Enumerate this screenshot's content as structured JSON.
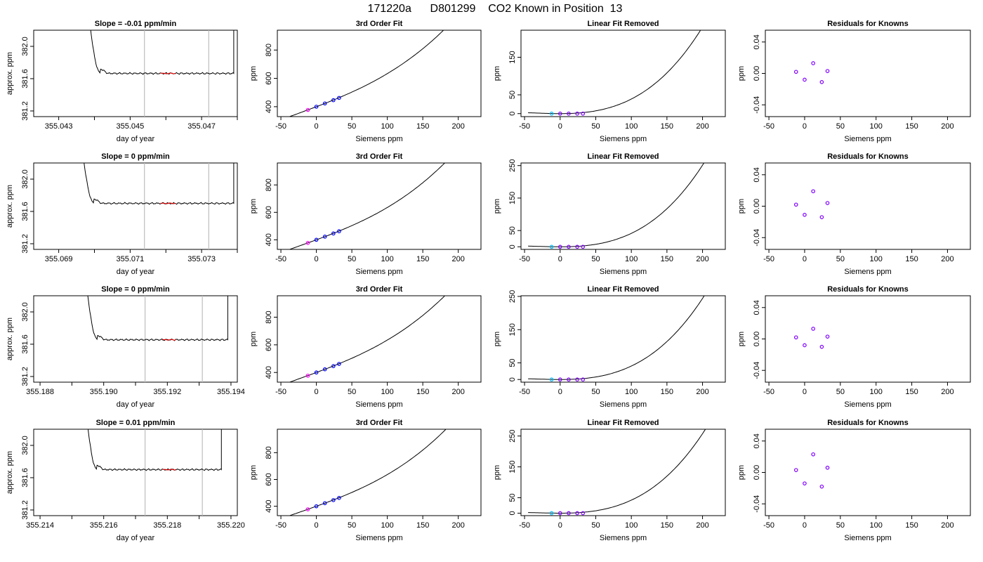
{
  "figure": {
    "title": "171220a      D801299    CO2 Known in Position  13"
  },
  "chart_data": [
    {
      "row": 1,
      "col": 1,
      "type": "line",
      "title": "Slope =  -0.01  ppm/min",
      "xlabel": "day of year",
      "ylabel": "approx. ppm",
      "xlim": [
        355.0423,
        355.048
      ],
      "ylim": [
        381.13,
        382.2
      ],
      "xticks": [
        355.043,
        355.045,
        355.047
      ],
      "xminor": [
        355.044,
        355.046,
        355.048
      ],
      "xdecimals": 3,
      "yticks": [
        381.2,
        381.6,
        382.0
      ],
      "ydecimals": 1,
      "vlines": [
        355.0454,
        355.0472
      ],
      "trace": {
        "start": 355.0438,
        "end": 355.0479,
        "level": 381.665,
        "offset": 0,
        "spike_start": 355.04585,
        "spike_end": 355.04627
      }
    },
    {
      "row": 1,
      "col": 2,
      "type": "line",
      "title": "3rd Order Fit",
      "xlabel": "Siemens ppm",
      "ylabel": "ppm",
      "xlim": [
        -55,
        232
      ],
      "ylim": [
        330,
        940
      ],
      "xticks": [
        -50,
        0,
        50,
        100,
        150,
        200
      ],
      "yticks": [
        400,
        600,
        800
      ],
      "curve": {
        "a": 400,
        "b": 1.9,
        "c": 0.002,
        "d": 2.35e-05,
        "x0": -45,
        "x1": 220
      },
      "points": [
        {
          "x": -12,
          "y": 377,
          "color": "#ff00ff"
        },
        {
          "x": 0,
          "y": 400,
          "color": "#0000ff"
        },
        {
          "x": 12,
          "y": 423,
          "color": "#0000ff"
        },
        {
          "x": 24,
          "y": 446,
          "color": "#0000ff"
        },
        {
          "x": 32,
          "y": 462,
          "color": "#0000ff"
        }
      ]
    },
    {
      "row": 1,
      "col": 3,
      "type": "line",
      "title": "Linear Fit Removed",
      "xlabel": "Siemens ppm",
      "ylabel": "ppm",
      "xlim": [
        -55,
        232
      ],
      "ylim": [
        -8,
        222
      ],
      "xticks": [
        -50,
        0,
        50,
        100,
        150,
        200
      ],
      "yticks": [
        0,
        50,
        150
      ],
      "curve": {
        "a": 0,
        "b": 0,
        "c": 0.002,
        "d": 1.88e-05,
        "x0": -45,
        "x1": 220
      },
      "points": [
        {
          "x": -12,
          "y": 0,
          "color": "#00bfff"
        },
        {
          "x": 0,
          "y": 0,
          "color": "#8000ff"
        },
        {
          "x": 12,
          "y": 0,
          "color": "#8000ff"
        },
        {
          "x": 24,
          "y": 0,
          "color": "#8000ff"
        },
        {
          "x": 32,
          "y": 0,
          "color": "#8000ff"
        }
      ]
    },
    {
      "row": 1,
      "col": 4,
      "type": "scatter",
      "title": "Residuals for Knowns",
      "xlabel": "Siemens ppm",
      "ylabel": "ppm",
      "xlim": [
        -55,
        232
      ],
      "ylim": [
        -0.055,
        0.055
      ],
      "xticks": [
        -50,
        0,
        50,
        100,
        150,
        200
      ],
      "yticks": [
        -0.04,
        0.0,
        0.04
      ],
      "ydecimals": 2,
      "points": [
        {
          "x": -12,
          "y": 0.002,
          "color": "#8000ff"
        },
        {
          "x": 0,
          "y": -0.008,
          "color": "#8000ff"
        },
        {
          "x": 12,
          "y": 0.013,
          "color": "#8000ff"
        },
        {
          "x": 24,
          "y": -0.011,
          "color": "#8000ff"
        },
        {
          "x": 32,
          "y": 0.003,
          "color": "#8000ff"
        }
      ]
    },
    {
      "row": 2,
      "col": 1,
      "type": "line",
      "title": "Slope =  0  ppm/min",
      "xlabel": "day of year",
      "ylabel": "approx. ppm",
      "xlim": [
        355.0683,
        355.074
      ],
      "ylim": [
        381.13,
        382.2
      ],
      "xticks": [
        355.069,
        355.071,
        355.073
      ],
      "xminor": [
        355.07,
        355.072,
        355.074
      ],
      "xdecimals": 3,
      "yticks": [
        381.2,
        381.6,
        382.0
      ],
      "ydecimals": 1,
      "vlines": [
        355.0714,
        355.0732
      ],
      "trace": {
        "start": 355.0696,
        "end": 355.0739,
        "level": 381.7,
        "offset": 0,
        "spike_start": 355.07185,
        "spike_end": 355.07227
      }
    },
    {
      "row": 2,
      "col": 2,
      "type": "line",
      "title": "3rd Order Fit",
      "xlabel": "Siemens ppm",
      "ylabel": "ppm",
      "xlim": [
        -55,
        232
      ],
      "ylim": [
        330,
        960
      ],
      "xticks": [
        -50,
        0,
        50,
        100,
        150,
        200
      ],
      "yticks": [
        400,
        600,
        800
      ],
      "curve": {
        "a": 400,
        "b": 1.9,
        "c": 0.002,
        "d": 2.55e-05,
        "x0": -45,
        "x1": 220
      },
      "points": [
        {
          "x": -12,
          "y": 377,
          "color": "#ff00ff"
        },
        {
          "x": 0,
          "y": 400,
          "color": "#0000ff"
        },
        {
          "x": 12,
          "y": 423,
          "color": "#0000ff"
        },
        {
          "x": 24,
          "y": 446,
          "color": "#0000ff"
        },
        {
          "x": 32,
          "y": 462,
          "color": "#0000ff"
        }
      ]
    },
    {
      "row": 2,
      "col": 3,
      "type": "line",
      "title": "Linear Fit Removed",
      "xlabel": "Siemens ppm",
      "ylabel": "ppm",
      "xlim": [
        -55,
        232
      ],
      "ylim": [
        -8,
        258
      ],
      "xticks": [
        -50,
        0,
        50,
        100,
        150,
        200
      ],
      "yticks": [
        0,
        50,
        150,
        250
      ],
      "curve": {
        "a": 0,
        "b": 0,
        "c": 0.002,
        "d": 2.14e-05,
        "x0": -45,
        "x1": 220
      },
      "points": [
        {
          "x": -12,
          "y": 0,
          "color": "#00bfff"
        },
        {
          "x": 0,
          "y": 0,
          "color": "#8000ff"
        },
        {
          "x": 12,
          "y": 0,
          "color": "#8000ff"
        },
        {
          "x": 24,
          "y": 0,
          "color": "#8000ff"
        },
        {
          "x": 32,
          "y": 0,
          "color": "#8000ff"
        }
      ]
    },
    {
      "row": 2,
      "col": 4,
      "type": "scatter",
      "title": "Residuals for Knowns",
      "xlabel": "Siemens ppm",
      "ylabel": "ppm",
      "xlim": [
        -55,
        232
      ],
      "ylim": [
        -0.055,
        0.055
      ],
      "xticks": [
        -50,
        0,
        50,
        100,
        150,
        200
      ],
      "yticks": [
        -0.04,
        0.0,
        0.04
      ],
      "ydecimals": 2,
      "points": [
        {
          "x": -12,
          "y": 0.002,
          "color": "#8000ff"
        },
        {
          "x": 0,
          "y": -0.011,
          "color": "#8000ff"
        },
        {
          "x": 12,
          "y": 0.019,
          "color": "#8000ff"
        },
        {
          "x": 24,
          "y": -0.014,
          "color": "#8000ff"
        },
        {
          "x": 32,
          "y": 0.004,
          "color": "#8000ff"
        }
      ]
    },
    {
      "row": 3,
      "col": 1,
      "type": "line",
      "title": "Slope =  0  ppm/min",
      "xlabel": "day of year",
      "ylabel": "approx. ppm",
      "xlim": [
        355.1878,
        355.1942
      ],
      "ylim": [
        381.13,
        382.2
      ],
      "xticks": [
        355.188,
        355.19,
        355.192,
        355.194
      ],
      "xminor": [
        355.189,
        355.191,
        355.193
      ],
      "xdecimals": 3,
      "yticks": [
        381.2,
        381.6,
        382.0
      ],
      "ydecimals": 1,
      "vlines": [
        355.1913,
        355.1931
      ],
      "trace": {
        "start": 355.1894,
        "end": 355.1939,
        "level": 381.655,
        "offset": 0,
        "spike_start": 355.19185,
        "spike_end": 355.19227
      }
    },
    {
      "row": 3,
      "col": 2,
      "type": "line",
      "title": "3rd Order Fit",
      "xlabel": "Siemens ppm",
      "ylabel": "ppm",
      "xlim": [
        -55,
        232
      ],
      "ylim": [
        330,
        955
      ],
      "xticks": [
        -50,
        0,
        50,
        100,
        150,
        200
      ],
      "yticks": [
        400,
        600,
        800
      ],
      "curve": {
        "a": 400,
        "b": 1.9,
        "c": 0.002,
        "d": 2.45e-05,
        "x0": -45,
        "x1": 220
      },
      "points": [
        {
          "x": -12,
          "y": 377,
          "color": "#ff00ff"
        },
        {
          "x": 0,
          "y": 400,
          "color": "#0000ff"
        },
        {
          "x": 12,
          "y": 423,
          "color": "#0000ff"
        },
        {
          "x": 24,
          "y": 446,
          "color": "#0000ff"
        },
        {
          "x": 32,
          "y": 462,
          "color": "#0000ff"
        }
      ]
    },
    {
      "row": 3,
      "col": 3,
      "type": "line",
      "title": "Linear Fit Removed",
      "xlabel": "Siemens ppm",
      "ylabel": "ppm",
      "xlim": [
        -55,
        232
      ],
      "ylim": [
        -8,
        252
      ],
      "xticks": [
        -50,
        0,
        50,
        100,
        150,
        200
      ],
      "yticks": [
        0,
        50,
        150,
        250
      ],
      "curve": {
        "a": 0,
        "b": 0,
        "c": 0.002,
        "d": 2.05e-05,
        "x0": -45,
        "x1": 220
      },
      "points": [
        {
          "x": -12,
          "y": 0,
          "color": "#00bfff"
        },
        {
          "x": 0,
          "y": 0,
          "color": "#8000ff"
        },
        {
          "x": 12,
          "y": 0,
          "color": "#8000ff"
        },
        {
          "x": 24,
          "y": 0,
          "color": "#8000ff"
        },
        {
          "x": 32,
          "y": 0,
          "color": "#8000ff"
        }
      ]
    },
    {
      "row": 3,
      "col": 4,
      "type": "scatter",
      "title": "Residuals for Knowns",
      "xlabel": "Siemens ppm",
      "ylabel": "ppm",
      "xlim": [
        -55,
        232
      ],
      "ylim": [
        -0.055,
        0.055
      ],
      "xticks": [
        -50,
        0,
        50,
        100,
        150,
        200
      ],
      "yticks": [
        -0.04,
        0.0,
        0.04
      ],
      "ydecimals": 2,
      "points": [
        {
          "x": -12,
          "y": 0.002,
          "color": "#8000ff"
        },
        {
          "x": 0,
          "y": -0.008,
          "color": "#8000ff"
        },
        {
          "x": 12,
          "y": 0.013,
          "color": "#8000ff"
        },
        {
          "x": 24,
          "y": -0.01,
          "color": "#8000ff"
        },
        {
          "x": 32,
          "y": 0.003,
          "color": "#8000ff"
        }
      ]
    },
    {
      "row": 4,
      "col": 1,
      "type": "line",
      "title": "Slope =  0.01  ppm/min",
      "xlabel": "day of year",
      "ylabel": "approx. ppm",
      "xlim": [
        355.2138,
        355.2202
      ],
      "ylim": [
        381.13,
        382.2
      ],
      "xticks": [
        355.214,
        355.216,
        355.218,
        355.22
      ],
      "xminor": [
        355.215,
        355.217,
        355.219
      ],
      "xdecimals": 3,
      "yticks": [
        381.2,
        381.6,
        382.0
      ],
      "ydecimals": 1,
      "vlines": [
        355.2173,
        355.2191
      ],
      "trace": {
        "start": 355.2154,
        "end": 355.2197,
        "level": 381.7,
        "offset": 0,
        "spike_start": 355.21785,
        "spike_end": 355.21827
      }
    },
    {
      "row": 4,
      "col": 2,
      "type": "line",
      "title": "3rd Order Fit",
      "xlabel": "Siemens ppm",
      "ylabel": "ppm",
      "xlim": [
        -55,
        232
      ],
      "ylim": [
        330,
        975
      ],
      "xticks": [
        -50,
        0,
        50,
        100,
        150,
        200
      ],
      "yticks": [
        400,
        600,
        800
      ],
      "curve": {
        "a": 400,
        "b": 1.9,
        "c": 0.002,
        "d": 2.65e-05,
        "x0": -45,
        "x1": 220
      },
      "points": [
        {
          "x": -12,
          "y": 377,
          "color": "#ff00ff"
        },
        {
          "x": 0,
          "y": 400,
          "color": "#0000ff"
        },
        {
          "x": 12,
          "y": 423,
          "color": "#0000ff"
        },
        {
          "x": 24,
          "y": 446,
          "color": "#0000ff"
        },
        {
          "x": 32,
          "y": 462,
          "color": "#0000ff"
        }
      ]
    },
    {
      "row": 4,
      "col": 3,
      "type": "line",
      "title": "Linear Fit Removed",
      "xlabel": "Siemens ppm",
      "ylabel": "ppm",
      "xlim": [
        -55,
        232
      ],
      "ylim": [
        -8,
        272
      ],
      "xticks": [
        -50,
        0,
        50,
        100,
        150,
        200
      ],
      "yticks": [
        0,
        50,
        150,
        250
      ],
      "curve": {
        "a": 0,
        "b": 0,
        "c": 0.002,
        "d": 2.22e-05,
        "x0": -45,
        "x1": 220
      },
      "points": [
        {
          "x": -12,
          "y": 0,
          "color": "#00bfff"
        },
        {
          "x": 0,
          "y": 0,
          "color": "#8000ff"
        },
        {
          "x": 12,
          "y": 0,
          "color": "#8000ff"
        },
        {
          "x": 24,
          "y": 0,
          "color": "#8000ff"
        },
        {
          "x": 32,
          "y": 0,
          "color": "#8000ff"
        }
      ]
    },
    {
      "row": 4,
      "col": 4,
      "type": "scatter",
      "title": "Residuals for Knowns",
      "xlabel": "Siemens ppm",
      "ylabel": "ppm",
      "xlim": [
        -55,
        232
      ],
      "ylim": [
        -0.055,
        0.055
      ],
      "xticks": [
        -50,
        0,
        50,
        100,
        150,
        200
      ],
      "yticks": [
        -0.04,
        0.0,
        0.04
      ],
      "ydecimals": 2,
      "points": [
        {
          "x": -12,
          "y": 0.003,
          "color": "#8000ff"
        },
        {
          "x": 0,
          "y": -0.014,
          "color": "#8000ff"
        },
        {
          "x": 12,
          "y": 0.023,
          "color": "#8000ff"
        },
        {
          "x": 24,
          "y": -0.018,
          "color": "#8000ff"
        },
        {
          "x": 32,
          "y": 0.006,
          "color": "#8000ff"
        }
      ]
    }
  ]
}
